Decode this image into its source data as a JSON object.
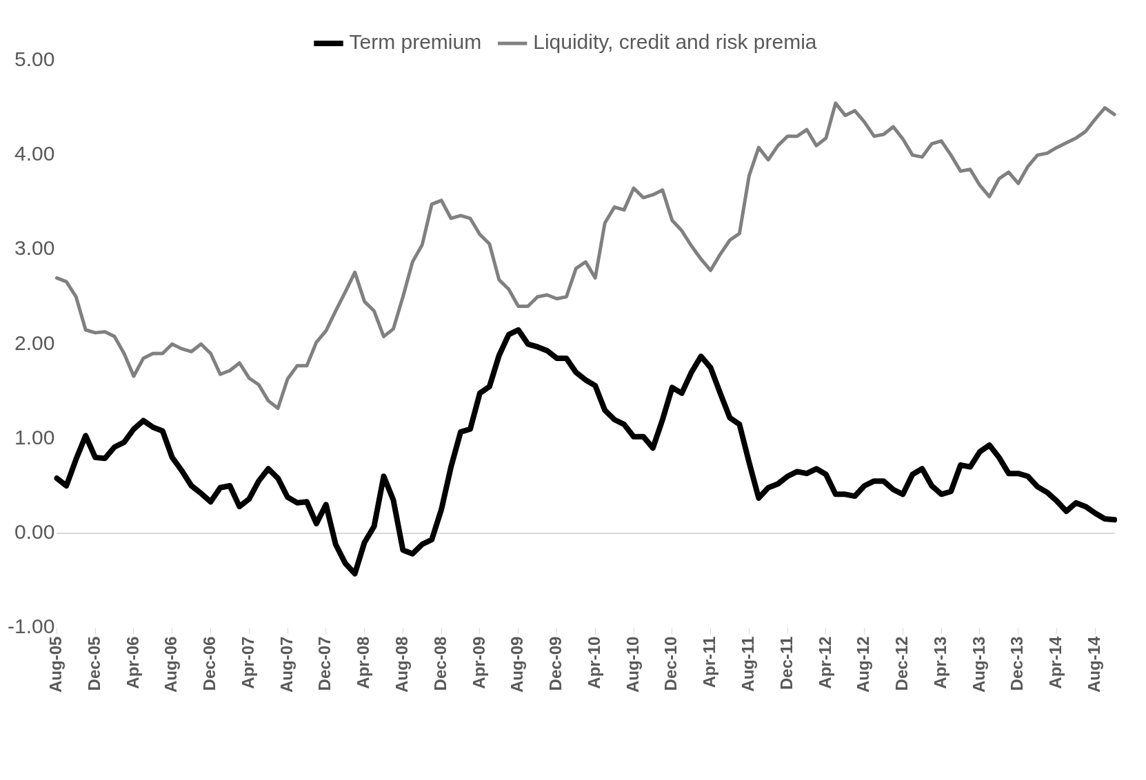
{
  "chart_data": {
    "type": "line",
    "categories": [
      "Aug-05",
      null,
      null,
      null,
      "Dec-05",
      null,
      null,
      null,
      "Apr-06",
      null,
      null,
      null,
      "Aug-06",
      null,
      null,
      null,
      "Dec-06",
      null,
      null,
      null,
      "Apr-07",
      null,
      null,
      null,
      "Aug-07",
      null,
      null,
      null,
      "Dec-07",
      null,
      null,
      null,
      "Apr-08",
      null,
      null,
      null,
      "Aug-08",
      null,
      null,
      null,
      "Dec-08",
      null,
      null,
      null,
      "Apr-09",
      null,
      null,
      null,
      "Aug-09",
      null,
      null,
      null,
      "Dec-09",
      null,
      null,
      null,
      "Apr-10",
      null,
      null,
      null,
      "Aug-10",
      null,
      null,
      null,
      "Dec-10",
      null,
      null,
      null,
      "Apr-11",
      null,
      null,
      null,
      "Aug-11",
      null,
      null,
      null,
      "Dec-11",
      null,
      null,
      null,
      "Apr-12",
      null,
      null,
      null,
      "Aug-12",
      null,
      null,
      null,
      "Dec-12",
      null,
      null,
      null,
      "Apr-13",
      null,
      null,
      null,
      "Aug-13",
      null,
      null,
      null,
      "Dec-13",
      null,
      null,
      null,
      "Apr-14",
      null,
      null,
      null,
      "Aug-14",
      null,
      null
    ],
    "series": [
      {
        "name": "Term premium",
        "color": "#000000",
        "values": [
          0.58,
          0.5,
          0.78,
          1.03,
          0.8,
          0.79,
          0.91,
          0.96,
          1.1,
          1.19,
          1.12,
          1.08,
          0.8,
          0.66,
          0.5,
          0.42,
          0.33,
          0.48,
          0.5,
          0.28,
          0.36,
          0.55,
          0.68,
          0.58,
          0.38,
          0.32,
          0.33,
          0.1,
          0.3,
          -0.12,
          -0.32,
          -0.43,
          -0.1,
          0.07,
          0.6,
          0.35,
          -0.18,
          -0.22,
          -0.12,
          -0.07,
          0.25,
          0.7,
          1.07,
          1.1,
          1.48,
          1.55,
          1.88,
          2.1,
          2.15,
          2.0,
          1.97,
          1.93,
          1.85,
          1.85,
          1.7,
          1.62,
          1.56,
          1.3,
          1.2,
          1.15,
          1.02,
          1.02,
          0.9,
          1.2,
          1.54,
          1.48,
          1.7,
          1.87,
          1.75,
          1.48,
          1.22,
          1.15,
          0.75,
          0.37,
          0.48,
          0.52,
          0.6,
          0.65,
          0.63,
          0.68,
          0.62,
          0.41,
          0.41,
          0.39,
          0.5,
          0.55,
          0.55,
          0.46,
          0.41,
          0.62,
          0.68,
          0.5,
          0.41,
          0.44,
          0.72,
          0.7,
          0.86,
          0.93,
          0.8,
          0.63,
          0.63,
          0.6,
          0.49,
          0.43,
          0.34,
          0.23,
          0.32,
          0.28,
          0.21,
          0.15,
          0.14
        ]
      },
      {
        "name": "Liquidity, credit and risk premia",
        "color": "#808080",
        "values": [
          2.7,
          2.66,
          2.5,
          2.15,
          2.12,
          2.13,
          2.08,
          1.9,
          1.66,
          1.85,
          1.9,
          1.9,
          2.0,
          1.95,
          1.92,
          2.0,
          1.9,
          1.68,
          1.72,
          1.8,
          1.64,
          1.57,
          1.4,
          1.32,
          1.63,
          1.77,
          1.77,
          2.02,
          2.14,
          2.35,
          2.55,
          2.76,
          2.45,
          2.35,
          2.08,
          2.16,
          2.5,
          2.87,
          3.05,
          3.48,
          3.52,
          3.33,
          3.36,
          3.33,
          3.16,
          3.06,
          2.68,
          2.58,
          2.4,
          2.4,
          2.5,
          2.52,
          2.48,
          2.5,
          2.8,
          2.87,
          2.7,
          3.28,
          3.45,
          3.42,
          3.65,
          3.55,
          3.58,
          3.63,
          3.31,
          3.2,
          3.04,
          2.9,
          2.78,
          2.95,
          3.1,
          3.17,
          3.78,
          4.08,
          3.95,
          4.1,
          4.2,
          4.2,
          4.27,
          4.1,
          4.18,
          4.55,
          4.42,
          4.47,
          4.35,
          4.2,
          4.22,
          4.3,
          4.17,
          4.0,
          3.98,
          4.12,
          4.15,
          4.0,
          3.83,
          3.85,
          3.68,
          3.56,
          3.75,
          3.82,
          3.7,
          3.88,
          4.0,
          4.02,
          4.08,
          4.13,
          4.18,
          4.25,
          4.38,
          4.5,
          4.43
        ]
      }
    ],
    "ylim": [
      -1,
      5
    ],
    "yticks": [
      {
        "value": -1,
        "label": "-1.00"
      },
      {
        "value": 0,
        "label": "0.00"
      },
      {
        "value": 1,
        "label": "1.00"
      },
      {
        "value": 2,
        "label": "2.00"
      },
      {
        "value": 3,
        "label": "3.00"
      },
      {
        "value": 4,
        "label": "4.00"
      },
      {
        "value": 5,
        "label": "5.00"
      }
    ],
    "legend": "top",
    "marker": "none",
    "line_style": "solid"
  }
}
